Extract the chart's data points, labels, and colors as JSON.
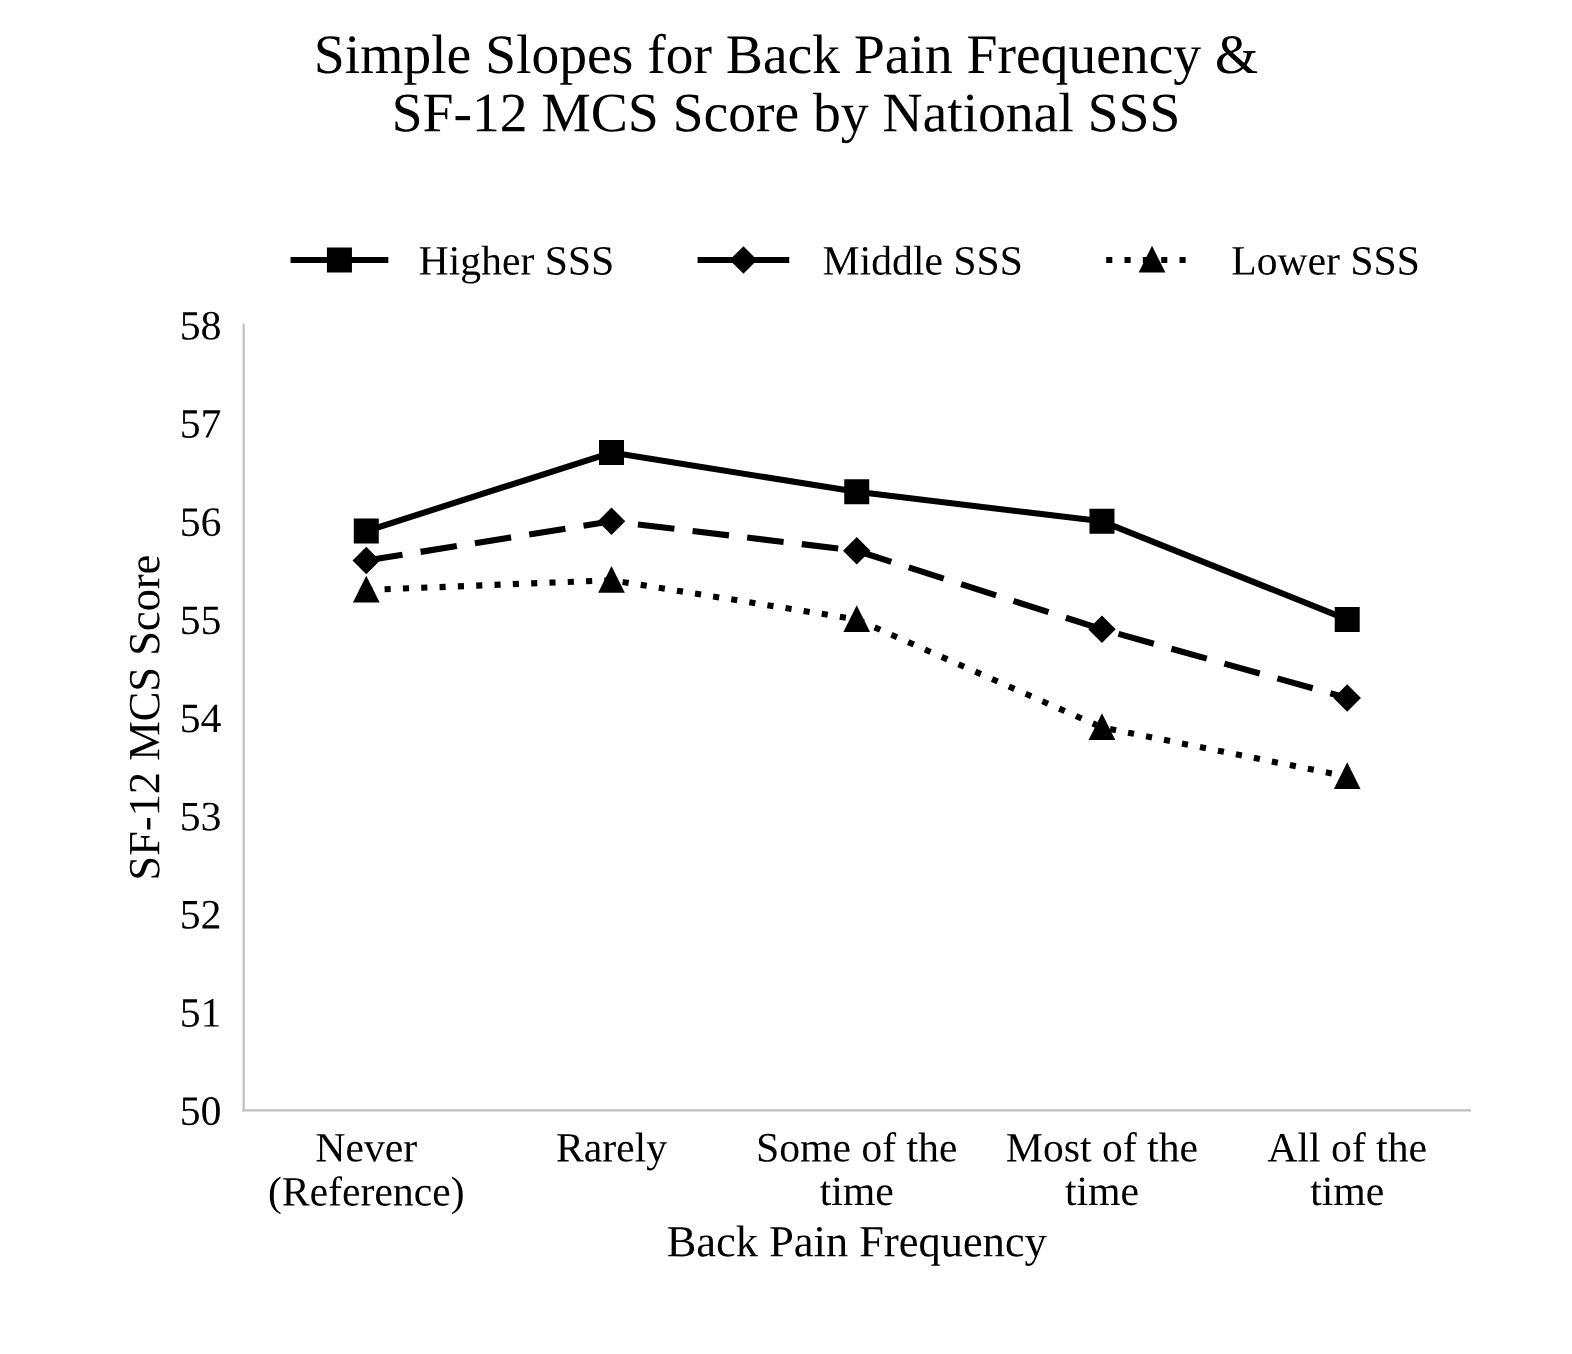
{
  "chart_data": {
    "type": "line",
    "title": "Simple Slopes for Back Pain Frequency &\nSF-12 MCS Score by National SSS",
    "xlabel": "Back Pain Frequency",
    "ylabel": "SF-12 MCS Score",
    "categories": [
      "Never\n(Reference)",
      "Rarely",
      "Some of the\ntime",
      "Most of the\ntime",
      "All of the\ntime"
    ],
    "series": [
      {
        "name": "Higher SSS",
        "color": "#000000",
        "marker": "square",
        "line_style": "solid",
        "values": [
          55.9,
          56.7,
          56.3,
          56.0,
          55.0
        ]
      },
      {
        "name": "Middle SSS",
        "color": "#000000",
        "marker": "diamond",
        "line_style": "dashed",
        "values": [
          55.6,
          56.0,
          55.7,
          54.9,
          54.2
        ]
      },
      {
        "name": "Lower SSS",
        "color": "#000000",
        "marker": "triangle",
        "line_style": "dotted",
        "values": [
          55.3,
          55.4,
          55.0,
          53.9,
          53.4
        ]
      }
    ],
    "ylim": [
      50,
      58
    ],
    "yticks": [
      50,
      51,
      52,
      53,
      54,
      55,
      56,
      57,
      58
    ],
    "grid": false,
    "legend": "top"
  }
}
